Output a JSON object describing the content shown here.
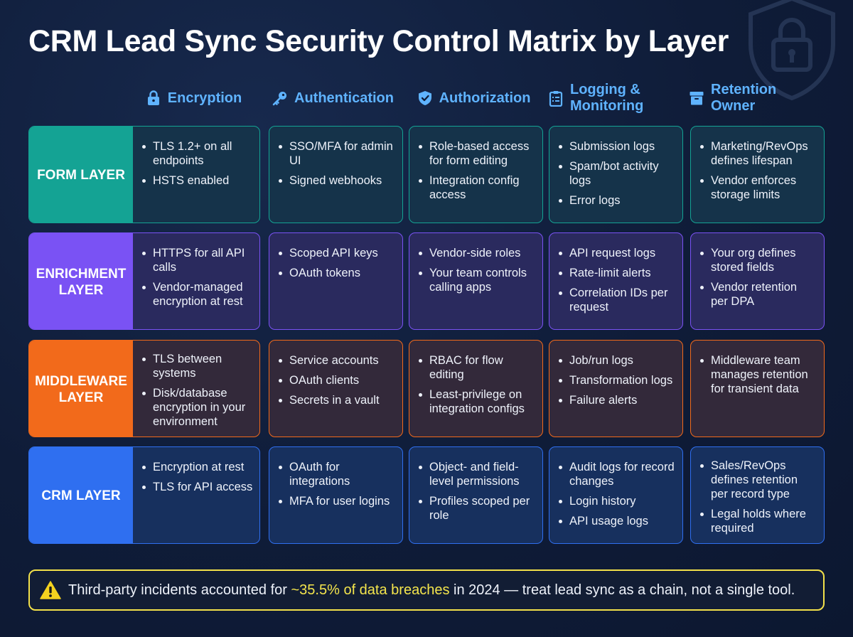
{
  "title": "CRM Lead Sync Security Control Matrix by Layer",
  "columns": [
    {
      "label": "Encryption",
      "icon": "lock-icon"
    },
    {
      "label": "Authentication",
      "icon": "key-icon"
    },
    {
      "label": "Authorization",
      "icon": "shield-check-icon"
    },
    {
      "label": "Logging & Monitoring",
      "icon": "clipboard-list-icon"
    },
    {
      "label": "Retention Owner",
      "icon": "archive-box-icon"
    }
  ],
  "rows": [
    {
      "layer": "FORM LAYER",
      "accent": "#14a394",
      "cells": [
        [
          "TLS 1.2+ on all endpoints",
          "HSTS enabled"
        ],
        [
          "SSO/MFA for admin UI",
          "Signed webhooks"
        ],
        [
          "Role-based access for form editing",
          "Integration config access"
        ],
        [
          "Submission logs",
          "Spam/bot activity logs",
          "Error logs"
        ],
        [
          "Marketing/RevOps defines lifespan",
          "Vendor enforces storage limits"
        ]
      ]
    },
    {
      "layer": "ENRICHMENT LAYER",
      "accent": "#7a52f4",
      "cells": [
        [
          "HTTPS for all API calls",
          "Vendor-managed encryption at rest"
        ],
        [
          "Scoped API keys",
          "OAuth tokens"
        ],
        [
          "Vendor-side roles",
          "Your team controls calling apps"
        ],
        [
          "API request logs",
          "Rate-limit alerts",
          "Correlation IDs per request"
        ],
        [
          "Your org defines stored fields",
          "Vendor retention per DPA"
        ]
      ]
    },
    {
      "layer": "MIDDLEWARE LAYER",
      "accent": "#f26a1b",
      "cells": [
        [
          "TLS between systems",
          "Disk/database encryption in your environment"
        ],
        [
          "Service accounts",
          "OAuth clients",
          "Secrets in a vault"
        ],
        [
          "RBAC for flow editing",
          "Least-privilege on integration configs"
        ],
        [
          "Job/run logs",
          "Transformation logs",
          "Failure alerts"
        ],
        [
          "Middleware team manages retention for transient data"
        ]
      ]
    },
    {
      "layer": "CRM LAYER",
      "accent": "#2f6ff0",
      "cells": [
        [
          "Encryption at rest",
          "TLS for API access"
        ],
        [
          "OAuth for integrations",
          "MFA for user logins"
        ],
        [
          "Object- and field-level permissions",
          "Profiles scoped per role"
        ],
        [
          "Audit logs for record changes",
          "Login history",
          "API usage logs"
        ],
        [
          "Sales/RevOps defines retention per record type",
          "Legal holds where required"
        ]
      ]
    }
  ],
  "footer": {
    "before": "Third-party incidents accounted for ",
    "highlight": "~35.5% of data breaches",
    "after": " in 2024 — treat lead sync as a chain, not a single tool.",
    "icon": "warning-icon"
  },
  "colors": {
    "header_text": "#5fb3ff",
    "footer_border": "#f2e04a",
    "highlight": "#f4e54c"
  }
}
